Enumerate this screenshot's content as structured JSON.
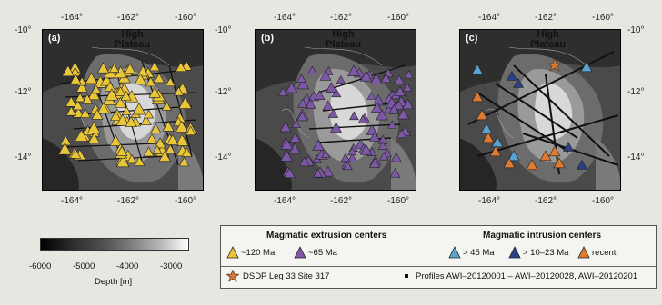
{
  "x_ticks": [
    "-164°",
    "-162°",
    "-160°"
  ],
  "y_ticks": [
    "-10°",
    "-12°",
    "-14°"
  ],
  "panels": [
    {
      "label": "(a)",
      "plateau_line1": "High",
      "plateau_line2": "Plateau"
    },
    {
      "label": "(b)",
      "plateau_line1": "High",
      "plateau_line2": "Plateau"
    },
    {
      "label": "(c)",
      "plateau_line1": "High",
      "plateau_line2": "Plateau"
    }
  ],
  "colorbar": {
    "ticks": [
      "-6000",
      "-5000",
      "-4000",
      "-3000"
    ],
    "label": "Depth [m]"
  },
  "legend": {
    "extrusion_title": "Magmatic extrusion centers",
    "intrusion_title": "Magmatic intrusion centers",
    "items": [
      {
        "label": "~120 Ma",
        "color": "#e9c53a"
      },
      {
        "label": "~65 Ma",
        "color": "#7d58a6"
      },
      {
        "label": "> 45 Ma",
        "color": "#5aa3cf"
      },
      {
        "label": "> 10–23 Ma",
        "color": "#2d3f86"
      },
      {
        "label": "recent",
        "color": "#df7a32"
      }
    ],
    "site_label": "DSDP Leg 33 Site 317",
    "site_color": "#d07a3a",
    "profiles_label": "Profiles AWI–20120001 – AWI–20120028, AWI–20120201"
  }
}
